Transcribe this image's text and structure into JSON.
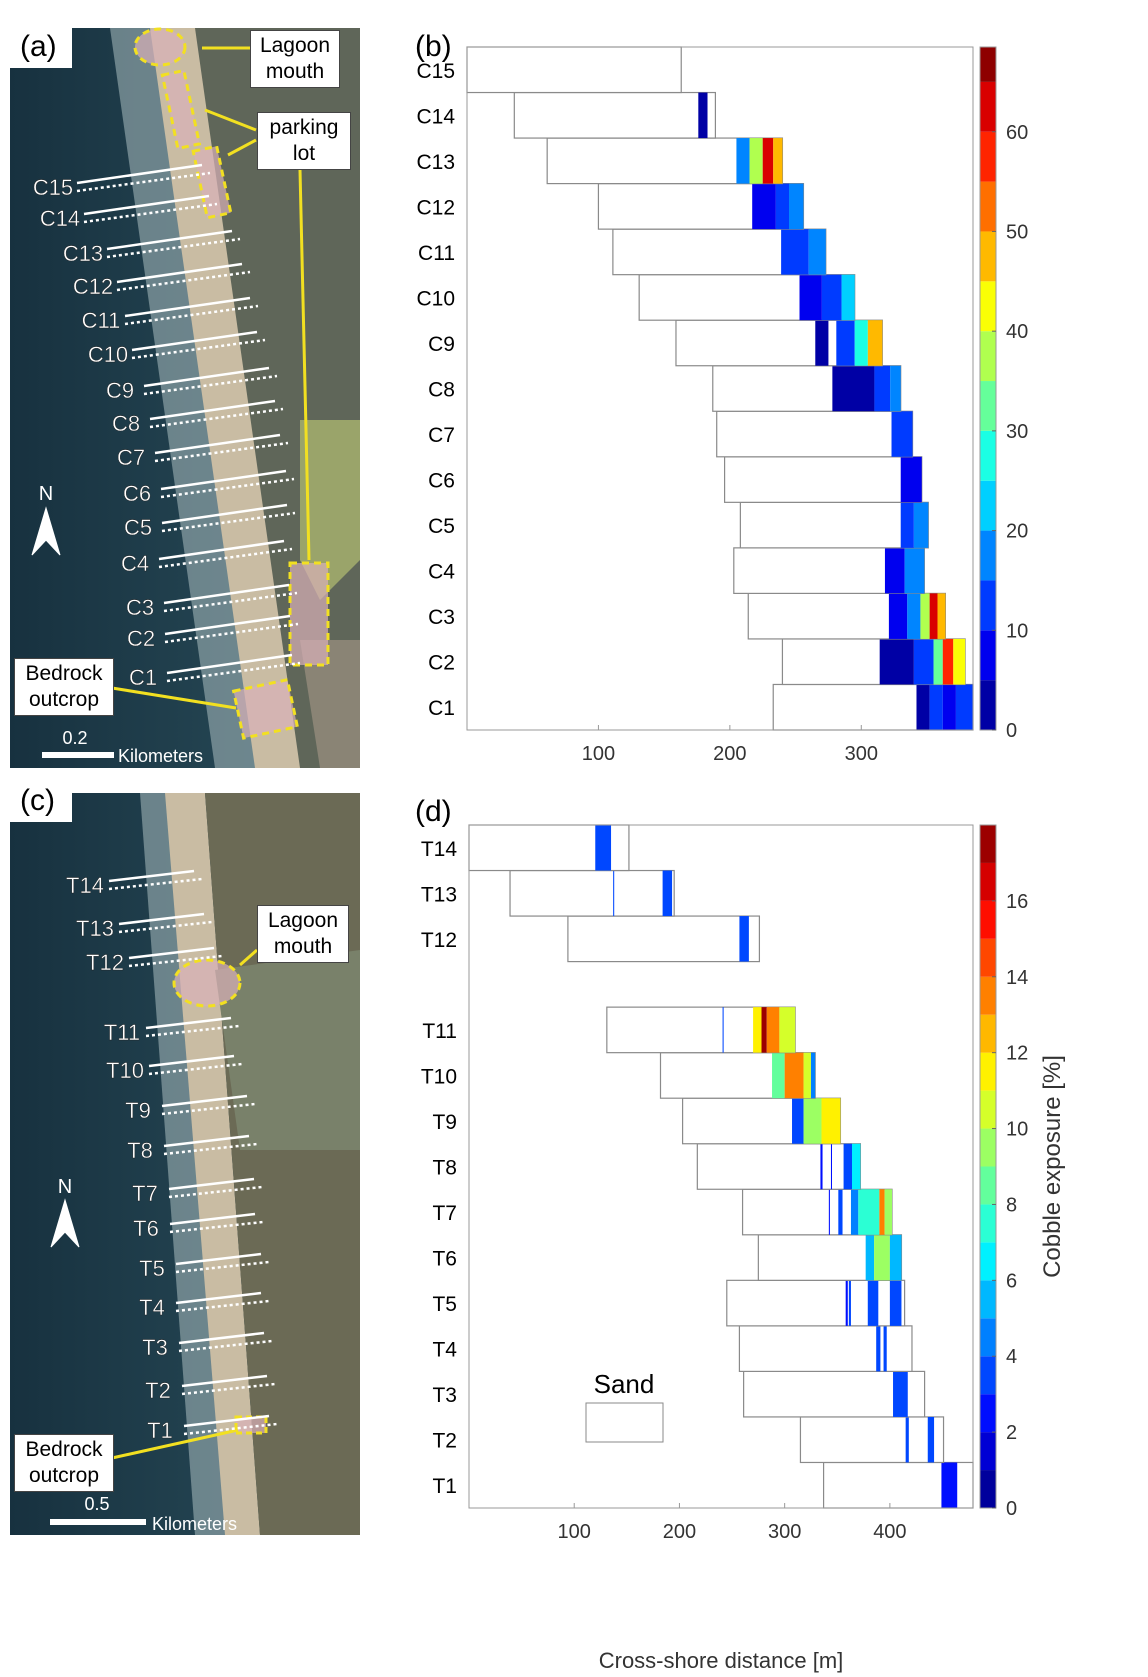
{
  "maps": [
    {
      "panel": "(a)",
      "transects": [
        "C1",
        "C2",
        "C3",
        "C4",
        "C5",
        "C6",
        "C7",
        "C8",
        "C9",
        "C10",
        "C11",
        "C12",
        "C13",
        "C14",
        "C15"
      ],
      "annotations": [
        "Lagoon mouth",
        "parking lot",
        "Bedrock outcrop"
      ],
      "north": "N",
      "scale_label": "0.2",
      "scale_unit": "Kilometers"
    },
    {
      "panel": "(c)",
      "transects": [
        "T1",
        "T2",
        "T3",
        "T4",
        "T5",
        "T6",
        "T7",
        "T8",
        "T9",
        "T10",
        "T11",
        "T12",
        "T13",
        "T14"
      ],
      "annotations": [
        "Lagoon mouth",
        "Bedrock outcrop"
      ],
      "north": "N",
      "scale_label": "0.5",
      "scale_unit": "Kilometers"
    }
  ],
  "chart_data": [
    {
      "type": "transect",
      "panel": "(b)",
      "categories": [
        "C1",
        "C2",
        "C3",
        "C4",
        "C5",
        "C6",
        "C7",
        "C8",
        "C9",
        "C10",
        "C11",
        "C12",
        "C13",
        "C14",
        "C15"
      ],
      "sand_start": [
        233,
        240,
        214,
        203,
        208,
        196,
        190,
        187,
        159,
        131,
        111,
        100,
        61,
        36,
        0
      ],
      "sand_end": [
        385,
        379,
        364,
        348,
        351,
        346,
        339,
        330,
        316,
        295,
        273,
        256,
        240,
        189,
        163
      ],
      "cobble": [
        [
          {
            "x0": 342,
            "x1": 352,
            "value": 3
          },
          {
            "x0": 352,
            "x1": 362,
            "value": 10
          },
          {
            "x0": 362,
            "x1": 372,
            "value": 5
          },
          {
            "x0": 372,
            "x1": 385,
            "value": 12
          }
        ],
        [
          {
            "x0": 314,
            "x1": 340,
            "value": 3
          },
          {
            "x0": 340,
            "x1": 355,
            "value": 12
          },
          {
            "x0": 355,
            "x1": 362,
            "value": 30
          },
          {
            "x0": 362,
            "x1": 370,
            "value": 58
          },
          {
            "x0": 370,
            "x1": 379,
            "value": 40
          }
        ],
        [
          {
            "x0": 321,
            "x1": 335,
            "value": 5
          },
          {
            "x0": 335,
            "x1": 345,
            "value": 15
          },
          {
            "x0": 345,
            "x1": 352,
            "value": 35
          },
          {
            "x0": 352,
            "x1": 358,
            "value": 62
          },
          {
            "x0": 358,
            "x1": 364,
            "value": 45
          }
        ],
        [
          {
            "x0": 318,
            "x1": 333,
            "value": 5
          },
          {
            "x0": 333,
            "x1": 348,
            "value": 15
          }
        ],
        [
          {
            "x0": 330,
            "x1": 340,
            "value": 10
          },
          {
            "x0": 340,
            "x1": 351,
            "value": 18
          }
        ],
        [
          {
            "x0": 330,
            "x1": 346,
            "value": 8
          }
        ],
        [
          {
            "x0": 323,
            "x1": 339,
            "value": 12
          }
        ],
        [
          {
            "x0": 278,
            "x1": 310,
            "value": 3
          },
          {
            "x0": 310,
            "x1": 322,
            "value": 10
          },
          {
            "x0": 322,
            "x1": 330,
            "value": 18
          }
        ],
        [
          {
            "x0": 265,
            "x1": 275,
            "value": 3
          },
          {
            "x0": 281,
            "x1": 295,
            "value": 10
          },
          {
            "x0": 295,
            "x1": 305,
            "value": 25
          },
          {
            "x0": 305,
            "x1": 316,
            "value": 48
          }
        ],
        [
          {
            "x0": 253,
            "x1": 270,
            "value": 5
          },
          {
            "x0": 270,
            "x1": 285,
            "value": 12
          },
          {
            "x0": 285,
            "x1": 295,
            "value": 20
          }
        ],
        [
          {
            "x0": 239,
            "x1": 260,
            "value": 12
          },
          {
            "x0": 260,
            "x1": 273,
            "value": 18
          }
        ],
        [
          {
            "x0": 217,
            "x1": 235,
            "value": 5
          },
          {
            "x0": 235,
            "x1": 245,
            "value": 12
          },
          {
            "x0": 245,
            "x1": 256,
            "value": 15
          }
        ],
        [
          {
            "x0": 205,
            "x1": 215,
            "value": 15
          },
          {
            "x0": 215,
            "x1": 225,
            "value": 35
          },
          {
            "x0": 225,
            "x1": 233,
            "value": 60
          },
          {
            "x0": 233,
            "x1": 240,
            "value": 45
          }
        ],
        [
          {
            "x0": 176,
            "x1": 183,
            "value": 3
          }
        ],
        []
      ],
      "xlim": [
        0,
        385
      ],
      "xticks": [
        100,
        200,
        300
      ],
      "clim": [
        0,
        68.5
      ],
      "colorbar_ticks": [
        0,
        10,
        20,
        30,
        40,
        50,
        60
      ],
      "colormap": "jet"
    },
    {
      "type": "transect",
      "panel": "(d)",
      "categories": [
        "T1",
        "T2",
        "T3",
        "T4",
        "T5",
        "T6",
        "T7",
        "T8",
        "T9",
        "T10",
        "T11",
        null,
        "T12",
        "T13",
        "T14"
      ],
      "sand_start": [
        337,
        315,
        261,
        257,
        245,
        275,
        260,
        217,
        203,
        182,
        131,
        null,
        94,
        39,
        0
      ],
      "sand_end": [
        479,
        451,
        433,
        421,
        414,
        411,
        402,
        372,
        353,
        329,
        310,
        null,
        276,
        195,
        152
      ],
      "cobble": [
        [
          {
            "x0": 449,
            "x1": 464,
            "value": 2
          }
        ],
        [
          {
            "x0": 415,
            "x1": 418,
            "value": 3
          },
          {
            "x0": 436,
            "x1": 442,
            "value": 3
          }
        ],
        [
          {
            "x0": 403,
            "x1": 417,
            "value": 3
          }
        ],
        [
          {
            "x0": 387,
            "x1": 391,
            "value": 3
          },
          {
            "x0": 394,
            "x1": 397,
            "value": 3
          }
        ],
        [
          {
            "x0": 358,
            "x1": 360,
            "value": 2
          },
          {
            "x0": 361,
            "x1": 363,
            "value": 3
          },
          {
            "x0": 379,
            "x1": 389,
            "value": 3
          },
          {
            "x0": 400,
            "x1": 411,
            "value": 3
          }
        ],
        [
          {
            "x0": 377,
            "x1": 385,
            "value": 5
          },
          {
            "x0": 385,
            "x1": 400,
            "value": 9
          },
          {
            "x0": 400,
            "x1": 411,
            "value": 5
          }
        ],
        [
          {
            "x0": 342,
            "x1": 343,
            "value": 2
          },
          {
            "x0": 351,
            "x1": 355,
            "value": 3
          },
          {
            "x0": 363,
            "x1": 370,
            "value": 4
          },
          {
            "x0": 370,
            "x1": 390,
            "value": 7
          },
          {
            "x0": 390,
            "x1": 395,
            "value": 13
          },
          {
            "x0": 395,
            "x1": 402,
            "value": 9
          }
        ],
        [
          {
            "x0": 334,
            "x1": 336,
            "value": 2
          },
          {
            "x0": 344,
            "x1": 345,
            "value": 2
          },
          {
            "x0": 356,
            "x1": 364,
            "value": 3
          },
          {
            "x0": 364,
            "x1": 372,
            "value": 6
          }
        ],
        [
          {
            "x0": 307,
            "x1": 318,
            "value": 3
          },
          {
            "x0": 318,
            "x1": 335,
            "value": 9
          },
          {
            "x0": 335,
            "x1": 353,
            "value": 11
          }
        ],
        [
          {
            "x0": 288,
            "x1": 300,
            "value": 8
          },
          {
            "x0": 300,
            "x1": 318,
            "value": 13
          },
          {
            "x0": 318,
            "x1": 325,
            "value": 10
          },
          {
            "x0": 325,
            "x1": 329,
            "value": 4
          }
        ],
        [
          {
            "x0": 241,
            "x1": 242,
            "value": 3
          },
          {
            "x0": 270,
            "x1": 278,
            "value": 11
          },
          {
            "x0": 278,
            "x1": 283,
            "value": 17
          },
          {
            "x0": 283,
            "x1": 295,
            "value": 13
          },
          {
            "x0": 295,
            "x1": 310,
            "value": 10
          }
        ],
        [],
        [
          {
            "x0": 257,
            "x1": 266,
            "value": 3
          }
        ],
        [
          {
            "x0": 137,
            "x1": 138,
            "value": 3
          },
          {
            "x0": 184,
            "x1": 193,
            "value": 3
          }
        ],
        [
          {
            "x0": 120,
            "x1": 135,
            "value": 3
          }
        ]
      ],
      "xlim": [
        0,
        479
      ],
      "xticks": [
        100,
        200,
        300,
        400
      ],
      "xlabel": "Cross-shore distance [m]",
      "clim": [
        0,
        18
      ],
      "colorbar_ticks": [
        0,
        2,
        4,
        6,
        8,
        10,
        12,
        14,
        16
      ],
      "colormap": "jet",
      "colorbar_label": "Cobble exposure [%]",
      "sand_label": "Sand"
    }
  ]
}
